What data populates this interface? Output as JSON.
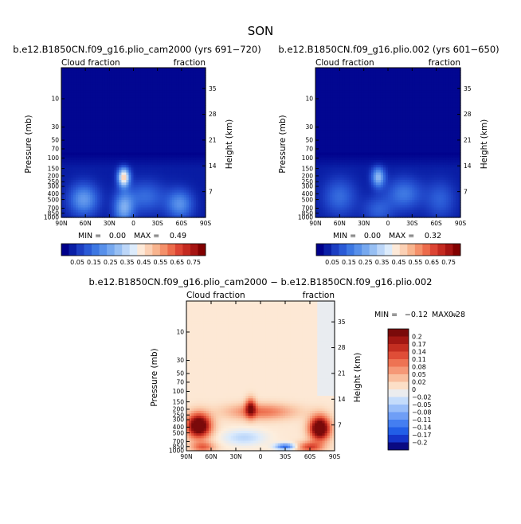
{
  "figure": {
    "title": "SON"
  },
  "colors": {
    "cloud_scale": [
      "#00008b",
      "#0a1fa6",
      "#1c3ec2",
      "#2a5ad6",
      "#3d77e2",
      "#5890ea",
      "#76a8ef",
      "#97bff3",
      "#bcd6f8",
      "#dcebfb",
      "#fde9d8",
      "#fbd0b4",
      "#f8b48e",
      "#f4906a",
      "#ec6b4b",
      "#dc4433",
      "#c42a20",
      "#a61412",
      "#820000"
    ],
    "diff_scale": [
      "#0a0a82",
      "#1432c8",
      "#1e5ae6",
      "#3c78f0",
      "#6496f5",
      "#8cb4f8",
      "#b4d2fa",
      "#dcebfc",
      "#fdeedd",
      "#fbd2b4",
      "#f8b090",
      "#f48c6a",
      "#ec6a4a",
      "#dc4632",
      "#c02a1e",
      "#a01612",
      "#7a0a0a"
    ]
  },
  "chart_data": [
    {
      "type": "heatmap",
      "id": "panel-left",
      "title": "b.e12.B1850CN.f09_g16.plio_cam2000 (yrs 691−720)",
      "left_label": "Cloud fraction",
      "right_label": "fraction",
      "xlabel": "",
      "ylabel": "Pressure (mb)",
      "ylabel_right": "Height (km)",
      "x_ticks": [
        "90N",
        "60N",
        "30N",
        "0",
        "30S",
        "60S",
        "90S"
      ],
      "x_tick_values": [
        90,
        60,
        30,
        0,
        -30,
        -60,
        -90
      ],
      "y_ticks": [
        "10",
        "30",
        "50",
        "70",
        "100",
        "150",
        "200",
        "250",
        "300",
        "400",
        "500",
        "700",
        "850",
        "1000"
      ],
      "y_tick_values": [
        10,
        30,
        50,
        70,
        100,
        150,
        200,
        250,
        300,
        400,
        500,
        700,
        850,
        1000
      ],
      "y_right_ticks": [
        "35",
        "28",
        "21",
        "14",
        "7"
      ],
      "y_right_tick_values": [
        35,
        28,
        21,
        14,
        7
      ],
      "ylim": [
        1000,
        3
      ],
      "min_label": "MIN =",
      "min_value": "0.00",
      "max_label": "MAX =",
      "max_value": "0.49",
      "min_num": 0.0,
      "max_num": 0.49,
      "colorbar": "horizontal",
      "levels": [
        "0.05",
        "0.15",
        "0.25",
        "0.35",
        "0.45",
        "0.55",
        "0.65",
        "0.75"
      ],
      "features": [
        {
          "lat": 12,
          "p": 200,
          "value": 0.49
        },
        {
          "lat": 12,
          "p": 850,
          "value": 0.25
        },
        {
          "lat": -50,
          "p": 600,
          "value": 0.3
        },
        {
          "lat": 65,
          "p": 600,
          "value": 0.25
        }
      ]
    },
    {
      "type": "heatmap",
      "id": "panel-right",
      "title": "b.e12.B1850CN.f09_g16.plio.002 (yrs 601−650)",
      "left_label": "Cloud fraction",
      "right_label": "fraction",
      "xlabel": "",
      "ylabel": "Pressure (mb)",
      "ylabel_right": "Height (km)",
      "x_ticks": [
        "90N",
        "60N",
        "30N",
        "0",
        "30S",
        "60S",
        "90S"
      ],
      "x_tick_values": [
        90,
        60,
        30,
        0,
        -30,
        -60,
        -90
      ],
      "y_ticks": [
        "10",
        "30",
        "50",
        "70",
        "100",
        "150",
        "200",
        "250",
        "300",
        "400",
        "500",
        "700",
        "850",
        "1000"
      ],
      "y_tick_values": [
        10,
        30,
        50,
        70,
        100,
        150,
        200,
        250,
        300,
        400,
        500,
        700,
        850,
        1000
      ],
      "y_right_ticks": [
        "35",
        "28",
        "21",
        "14",
        "7"
      ],
      "y_right_tick_values": [
        35,
        28,
        21,
        14,
        7
      ],
      "ylim": [
        1000,
        3
      ],
      "min_label": "MIN =",
      "min_value": "0.00",
      "max_label": "MAX =",
      "max_value": "0.32",
      "min_num": 0.0,
      "max_num": 0.32,
      "colorbar": "horizontal",
      "levels": [
        "0.05",
        "0.15",
        "0.25",
        "0.35",
        "0.45",
        "0.55",
        "0.65",
        "0.75"
      ],
      "features": [
        {
          "lat": 12,
          "p": 200,
          "value": 0.32
        },
        {
          "lat": -20,
          "p": 400,
          "value": 0.2
        },
        {
          "lat": 60,
          "p": 500,
          "value": 0.15
        }
      ]
    },
    {
      "type": "heatmap",
      "id": "panel-diff",
      "title": "b.e12.B1850CN.f09_g16.plio_cam2000 − b.e12.B1850CN.f09_g16.plio.002",
      "left_label": "Cloud fraction",
      "right_label": "fraction",
      "xlabel": "",
      "ylabel": "Pressure (mb)",
      "ylabel_right": "Height (km)",
      "x_ticks": [
        "90N",
        "60N",
        "30N",
        "0",
        "30S",
        "60S",
        "90S"
      ],
      "x_tick_values": [
        90,
        60,
        30,
        0,
        -30,
        -60,
        -90
      ],
      "y_ticks": [
        "10",
        "30",
        "50",
        "70",
        "100",
        "150",
        "200",
        "250",
        "300",
        "400",
        "500",
        "700",
        "850",
        "1000"
      ],
      "y_tick_values": [
        10,
        30,
        50,
        70,
        100,
        150,
        200,
        250,
        300,
        400,
        500,
        700,
        850,
        1000
      ],
      "y_right_ticks": [
        "35",
        "28",
        "21",
        "14",
        "7"
      ],
      "y_right_tick_values": [
        35,
        28,
        21,
        14,
        7
      ],
      "ylim": [
        1000,
        3
      ],
      "min_label": "MIN =",
      "min_value": "−0.12",
      "max_label": "MAX =",
      "max_value": "0.28",
      "min_num": -0.12,
      "max_num": 0.28,
      "colorbar": "vertical",
      "levels": [
        "0.2",
        "0.17",
        "0.14",
        "0.11",
        "0.08",
        "0.05",
        "0.02",
        "0",
        "−0.02",
        "−0.05",
        "−0.08",
        "−0.11",
        "−0.14",
        "−0.17",
        "−0.2"
      ],
      "features": [
        {
          "lat": 75,
          "p": 400,
          "value": 0.28
        },
        {
          "lat": -70,
          "p": 400,
          "value": 0.28
        },
        {
          "lat": 12,
          "p": 200,
          "value": 0.17
        },
        {
          "lat": -30,
          "p": 850,
          "value": -0.12
        }
      ]
    }
  ]
}
